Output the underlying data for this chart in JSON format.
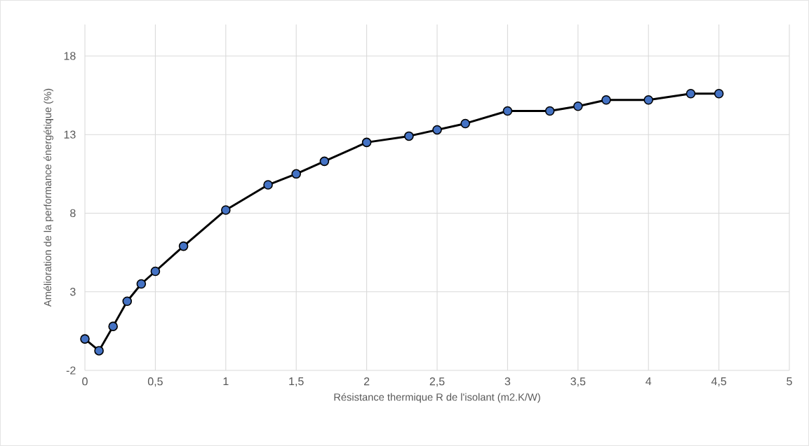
{
  "chart_data": {
    "type": "line",
    "xlabel": "Résistance thermique R de l'isolant (m2.K/W)",
    "ylabel": "Amélioration de la performance énergétique (%)",
    "x": [
      0,
      0.1,
      0.2,
      0.3,
      0.4,
      0.5,
      0.7,
      1,
      1.3,
      1.5,
      1.7,
      2,
      2.3,
      2.5,
      2.7,
      3,
      3.3,
      3.5,
      3.7,
      4,
      4.3,
      4.5
    ],
    "values": [
      0.0,
      -0.75,
      0.8,
      2.4,
      3.5,
      4.3,
      5.9,
      8.2,
      9.8,
      10.5,
      11.3,
      12.5,
      12.9,
      13.3,
      13.7,
      14.5,
      14.5,
      14.8,
      15.2,
      15.2,
      15.6,
      15.6
    ],
    "color": "#4472c4",
    "xlim": [
      0,
      5
    ],
    "xticks": [
      0,
      {
        "value": 0.5,
        "label": "0,5"
      },
      1,
      {
        "value": 1.5,
        "label": "1,5"
      },
      2,
      {
        "value": 2.5,
        "label": "2,5"
      },
      3,
      {
        "value": 3.5,
        "label": "3,5"
      },
      4,
      {
        "value": 4.5,
        "label": "4,5"
      },
      5
    ],
    "ylim": [
      -2,
      20
    ],
    "yticks": [
      -2,
      3,
      8,
      13,
      18
    ],
    "grid": true,
    "marker": "circle",
    "line_style": "solid"
  }
}
